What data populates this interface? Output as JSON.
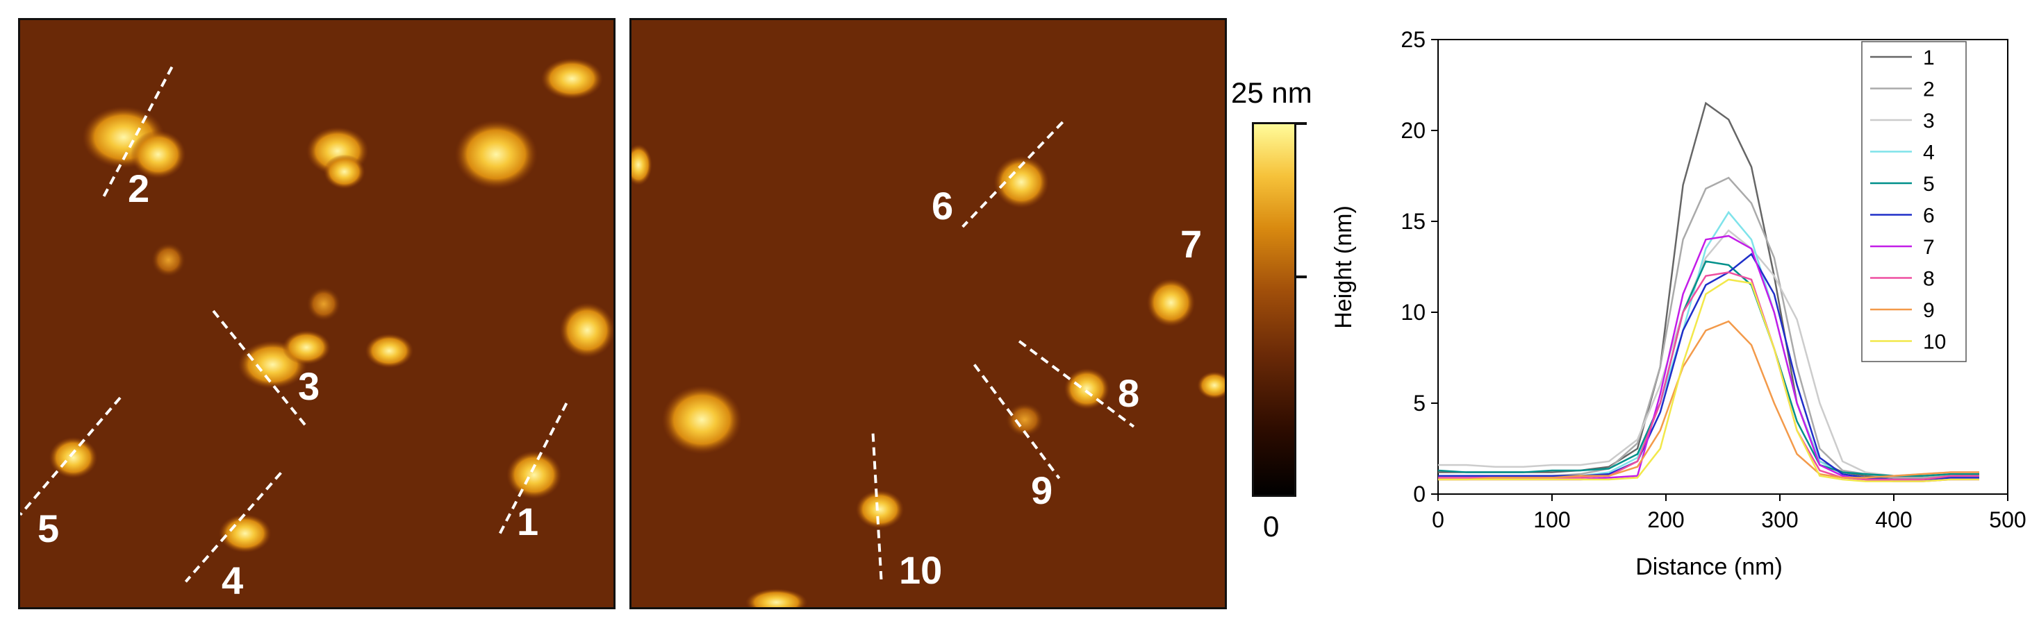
{
  "scalebar": {
    "max_label": "25 nm",
    "min_label": "0"
  },
  "afm_left": {
    "labels": [
      "1",
      "2",
      "3",
      "4",
      "5"
    ]
  },
  "afm_right": {
    "labels": [
      "6",
      "7",
      "8",
      "9",
      "10"
    ]
  },
  "chart_data": {
    "type": "line",
    "xlabel": "Distance (nm)",
    "ylabel": "Height (nm)",
    "xlim": [
      0,
      500
    ],
    "ylim": [
      0,
      25
    ],
    "xticks": [
      0,
      100,
      200,
      300,
      400,
      500
    ],
    "yticks": [
      0,
      5,
      10,
      15,
      20,
      25
    ],
    "grid": false,
    "legend": "top-right",
    "x": [
      0,
      25,
      50,
      75,
      100,
      125,
      150,
      175,
      195,
      215,
      235,
      255,
      275,
      295,
      315,
      335,
      355,
      375,
      400,
      425,
      450,
      475
    ],
    "series": [
      {
        "name": "1",
        "color": "#666666",
        "values": [
          1.2,
          1.2,
          1.2,
          1.2,
          1.2,
          1.3,
          1.5,
          2.5,
          7,
          17,
          21.5,
          20.6,
          18,
          12,
          5,
          1.8,
          1.2,
          1.0,
          0.9,
          0.9,
          1.0,
          1.0
        ]
      },
      {
        "name": "2",
        "color": "#aaaaaa",
        "values": [
          1.0,
          1.0,
          1.0,
          1.0,
          1.0,
          1.1,
          1.4,
          2.8,
          7,
          14,
          16.8,
          17.4,
          16,
          13,
          7,
          2.5,
          1.3,
          1.1,
          0.9,
          0.9,
          1.0,
          1.1
        ]
      },
      {
        "name": "3",
        "color": "#cccccc",
        "values": [
          1.6,
          1.6,
          1.5,
          1.5,
          1.6,
          1.6,
          1.8,
          3.0,
          6,
          10,
          13,
          14.5,
          13.5,
          12,
          9.6,
          5,
          1.8,
          1.2,
          1.0,
          1.1,
          1.2,
          1.2
        ]
      },
      {
        "name": "4",
        "color": "#7fe3ea",
        "values": [
          1.0,
          1.0,
          1.0,
          1.0,
          1.0,
          1.0,
          1.2,
          2.0,
          5,
          9,
          13.5,
          15.5,
          14,
          10,
          5,
          1.8,
          1.1,
          0.9,
          0.8,
          0.8,
          0.9,
          0.9
        ]
      },
      {
        "name": "5",
        "color": "#00908a",
        "values": [
          1.3,
          1.2,
          1.2,
          1.2,
          1.3,
          1.3,
          1.4,
          2.2,
          5,
          10,
          12.8,
          12.6,
          11.5,
          8,
          4,
          1.6,
          1.2,
          1.1,
          1.0,
          1.0,
          1.1,
          1.1
        ]
      },
      {
        "name": "6",
        "color": "#1f2fc8",
        "values": [
          1.0,
          1.0,
          1.0,
          1.0,
          1.0,
          1.0,
          1.1,
          1.8,
          4.5,
          9,
          11.5,
          12.2,
          13.2,
          11,
          6,
          2,
          1.1,
          0.9,
          0.8,
          0.8,
          0.9,
          0.9
        ]
      },
      {
        "name": "7",
        "color": "#c31de8",
        "values": [
          0.8,
          0.8,
          0.8,
          0.8,
          0.8,
          0.8,
          0.9,
          1.0,
          5.5,
          11,
          14,
          14.2,
          13.5,
          10,
          5,
          1.6,
          1.0,
          0.8,
          0.7,
          0.7,
          0.8,
          0.8
        ]
      },
      {
        "name": "8",
        "color": "#ee4ea0",
        "values": [
          0.9,
          0.9,
          0.9,
          0.9,
          0.9,
          0.9,
          1.0,
          1.8,
          5,
          10,
          12,
          12.2,
          11.8,
          8,
          3.5,
          1.3,
          0.9,
          0.8,
          0.8,
          0.8,
          1.0,
          1.0
        ]
      },
      {
        "name": "9",
        "color": "#f39a4a",
        "values": [
          0.8,
          0.8,
          0.9,
          0.9,
          0.9,
          1.0,
          1.0,
          1.5,
          3.5,
          7,
          9,
          9.5,
          8.2,
          5,
          2.2,
          1.1,
          0.9,
          0.9,
          1.0,
          1.1,
          1.2,
          1.2
        ]
      },
      {
        "name": "10",
        "color": "#f2e84a",
        "values": [
          0.8,
          0.8,
          0.8,
          0.8,
          0.8,
          0.8,
          0.8,
          0.9,
          2.5,
          7.2,
          11,
          11.8,
          11.6,
          8,
          3.5,
          1.0,
          0.8,
          0.7,
          0.7,
          0.7,
          0.8,
          0.8
        ]
      }
    ]
  }
}
